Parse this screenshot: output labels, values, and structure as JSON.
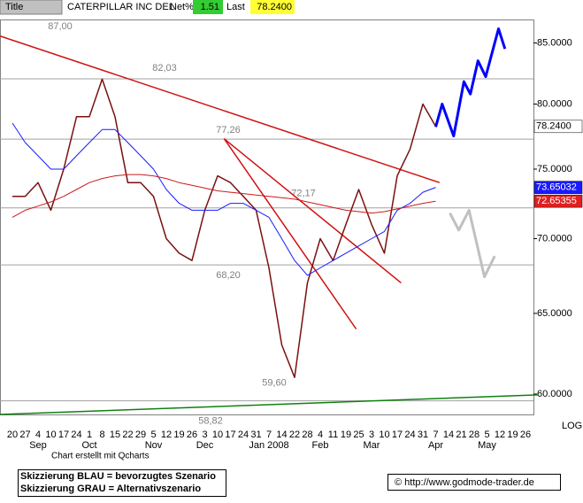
{
  "header": {
    "title_label": "Title",
    "name": "CATERPILLAR INC DEL",
    "net_label": "Net%",
    "net_value": "1.51",
    "last_label": "Last",
    "last_value": "78.2400"
  },
  "chart_data": {
    "type": "line",
    "log_scale": true,
    "scale_label": "LOG",
    "ylim": [
      58.8,
      87.0
    ],
    "yticks": [
      {
        "value": 60,
        "label": "60.0000"
      },
      {
        "value": 65,
        "label": "65.0000"
      },
      {
        "value": 70,
        "label": "70.0000"
      },
      {
        "value": 75,
        "label": "75.0000"
      },
      {
        "value": 80,
        "label": "80.0000"
      },
      {
        "value": 85,
        "label": "85.0000"
      }
    ],
    "categories": [
      "20",
      "27",
      "4",
      "10",
      "17",
      "24",
      "1",
      "8",
      "15",
      "22",
      "29",
      "5",
      "12",
      "19",
      "26",
      "3",
      "10",
      "17",
      "24",
      "31",
      "7",
      "14",
      "22",
      "28",
      "4",
      "11",
      "19",
      "25",
      "3",
      "10",
      "17",
      "24",
      "31",
      "7",
      "14",
      "21",
      "28",
      "5",
      "12",
      "19",
      "26"
    ],
    "months": [
      null,
      null,
      "Sep",
      null,
      null,
      null,
      "Oct",
      null,
      null,
      null,
      null,
      "Nov",
      null,
      null,
      null,
      "Dec",
      null,
      null,
      null,
      null,
      "Jan 2008",
      null,
      null,
      null,
      "Feb",
      null,
      null,
      null,
      "Mar",
      null,
      null,
      null,
      null,
      "Apr",
      null,
      null,
      null,
      "May",
      null,
      null,
      null
    ],
    "series": [
      {
        "color": "#7a1010",
        "last_label": "78.2400",
        "label_fill": "#ffffff",
        "values": [
          73,
          73,
          74,
          72,
          75,
          79,
          79,
          82,
          79,
          74,
          74,
          73,
          70,
          69,
          68.5,
          72,
          74.5,
          74,
          73,
          72,
          68,
          63,
          61,
          67,
          70,
          68.5,
          71,
          73.5,
          71,
          69,
          74.5,
          76.5,
          80,
          78.24,
          null,
          null,
          null,
          null,
          null,
          null,
          null
        ]
      },
      {
        "color": "#1a1aff",
        "last_label": "73.65032",
        "label_fill": "#1a1aff",
        "values": [
          78.5,
          77,
          76,
          75,
          75,
          76,
          77,
          78,
          78,
          77,
          76,
          75,
          73.5,
          72.5,
          72,
          72,
          72,
          72.5,
          72.5,
          72,
          71.5,
          70,
          68.5,
          67.5,
          68,
          68.5,
          69,
          69.5,
          70,
          70.5,
          72,
          72.5,
          73.3,
          73.65032,
          null,
          null,
          null,
          null,
          null,
          null,
          null
        ]
      },
      {
        "color": "#cc1a1a",
        "last_label": "72.65355",
        "label_fill": "#e02020",
        "values": [
          71.5,
          72,
          72.3,
          72.6,
          73,
          73.5,
          74,
          74.3,
          74.5,
          74.6,
          74.6,
          74.5,
          74.3,
          74,
          73.8,
          73.6,
          73.4,
          73.3,
          73.2,
          73.1,
          73,
          72.9,
          72.8,
          72.6,
          72.4,
          72.2,
          72,
          71.9,
          71.8,
          71.9,
          72.1,
          72.3,
          72.5,
          72.65355,
          null,
          null,
          null,
          null,
          null,
          null,
          null
        ]
      }
    ],
    "levels": [
      {
        "value": 87.0,
        "label": "87,00"
      },
      {
        "value": 82.03,
        "label": "82,03"
      },
      {
        "value": 77.26,
        "label": "77,26"
      },
      {
        "value": 72.17,
        "label": "72,17"
      },
      {
        "value": 68.2,
        "label": "68,20"
      },
      {
        "value": 59.6,
        "label": "59,60"
      },
      {
        "value": 58.82,
        "label": "58,82"
      }
    ],
    "trendlines": [
      {
        "color": "#d01010",
        "x": [
          -1,
          33.3
        ],
        "values": [
          85.6,
          74.0
        ]
      },
      {
        "color": "#d01010",
        "x": [
          16.5,
          26.8
        ],
        "values": [
          77.3,
          64.0
        ]
      },
      {
        "color": "#d01010",
        "x": [
          16.5,
          30.3
        ],
        "values": [
          77.3,
          67.0
        ]
      },
      {
        "color": "#108010",
        "x": [
          -1,
          41
        ],
        "values": [
          58.8,
          59.95
        ]
      }
    ],
    "scenarios": [
      {
        "color": "#0000ff",
        "x": [
          33,
          33.5,
          34.4,
          35.2,
          35.7,
          36.3,
          36.9,
          37.9,
          38.4
        ],
        "values": [
          78.2,
          80,
          77.5,
          81.8,
          80.8,
          83.5,
          82.2,
          86.2,
          84.5
        ]
      },
      {
        "color": "#c0c0c0",
        "x": [
          34.1,
          34.8,
          35.6,
          36.8,
          37.6
        ],
        "values": [
          71.8,
          70.6,
          72,
          67.4,
          68.8
        ]
      }
    ]
  },
  "footer": {
    "credit": "Chart erstellt mit Qcharts",
    "legend_blue": "Skizzierung BLAU = bevorzugtes Szenario",
    "legend_gray": "Skizzierung GRAU = Alternativszenario",
    "copyright": "© http://www.godmode-trader.de"
  }
}
